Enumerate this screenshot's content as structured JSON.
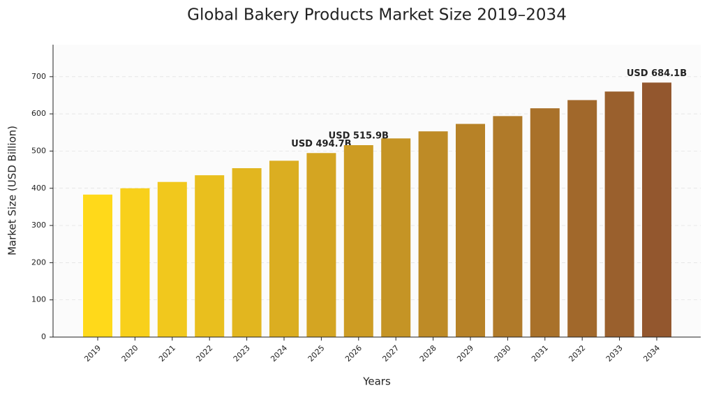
{
  "chart_data": {
    "type": "bar",
    "title": "Global Bakery Products Market Size 2019–2034",
    "x_label": "Years",
    "y_label": "Market Size (USD Billion)",
    "categories": [
      "2019",
      "2020",
      "2021",
      "2022",
      "2023",
      "2024",
      "2025",
      "2026",
      "2027",
      "2028",
      "2029",
      "2030",
      "2031",
      "2032",
      "2033",
      "2034"
    ],
    "values": [
      383,
      400,
      417,
      435,
      454,
      474,
      494.7,
      515.9,
      534,
      553,
      573,
      594,
      615,
      637,
      660,
      684.1
    ],
    "value_labels": [
      null,
      null,
      null,
      null,
      null,
      null,
      "USD 494.7B",
      "USD 515.9B",
      null,
      null,
      null,
      null,
      null,
      null,
      null,
      "USD 684.1B"
    ],
    "colors": [
      "#ffd91a",
      "#f8d01b",
      "#f1c81d",
      "#e9bf1e",
      "#e2b61f",
      "#dbae21",
      "#d4a522",
      "#cd9c23",
      "#c59425",
      "#be8b26",
      "#b78227",
      "#b07a29",
      "#a9712a",
      "#a1682b",
      "#9a602d",
      "#93572e"
    ],
    "ylim": [
      0,
      786
    ],
    "yticks": [
      0,
      100,
      200,
      300,
      400,
      500,
      600,
      700
    ],
    "grid": true
  }
}
